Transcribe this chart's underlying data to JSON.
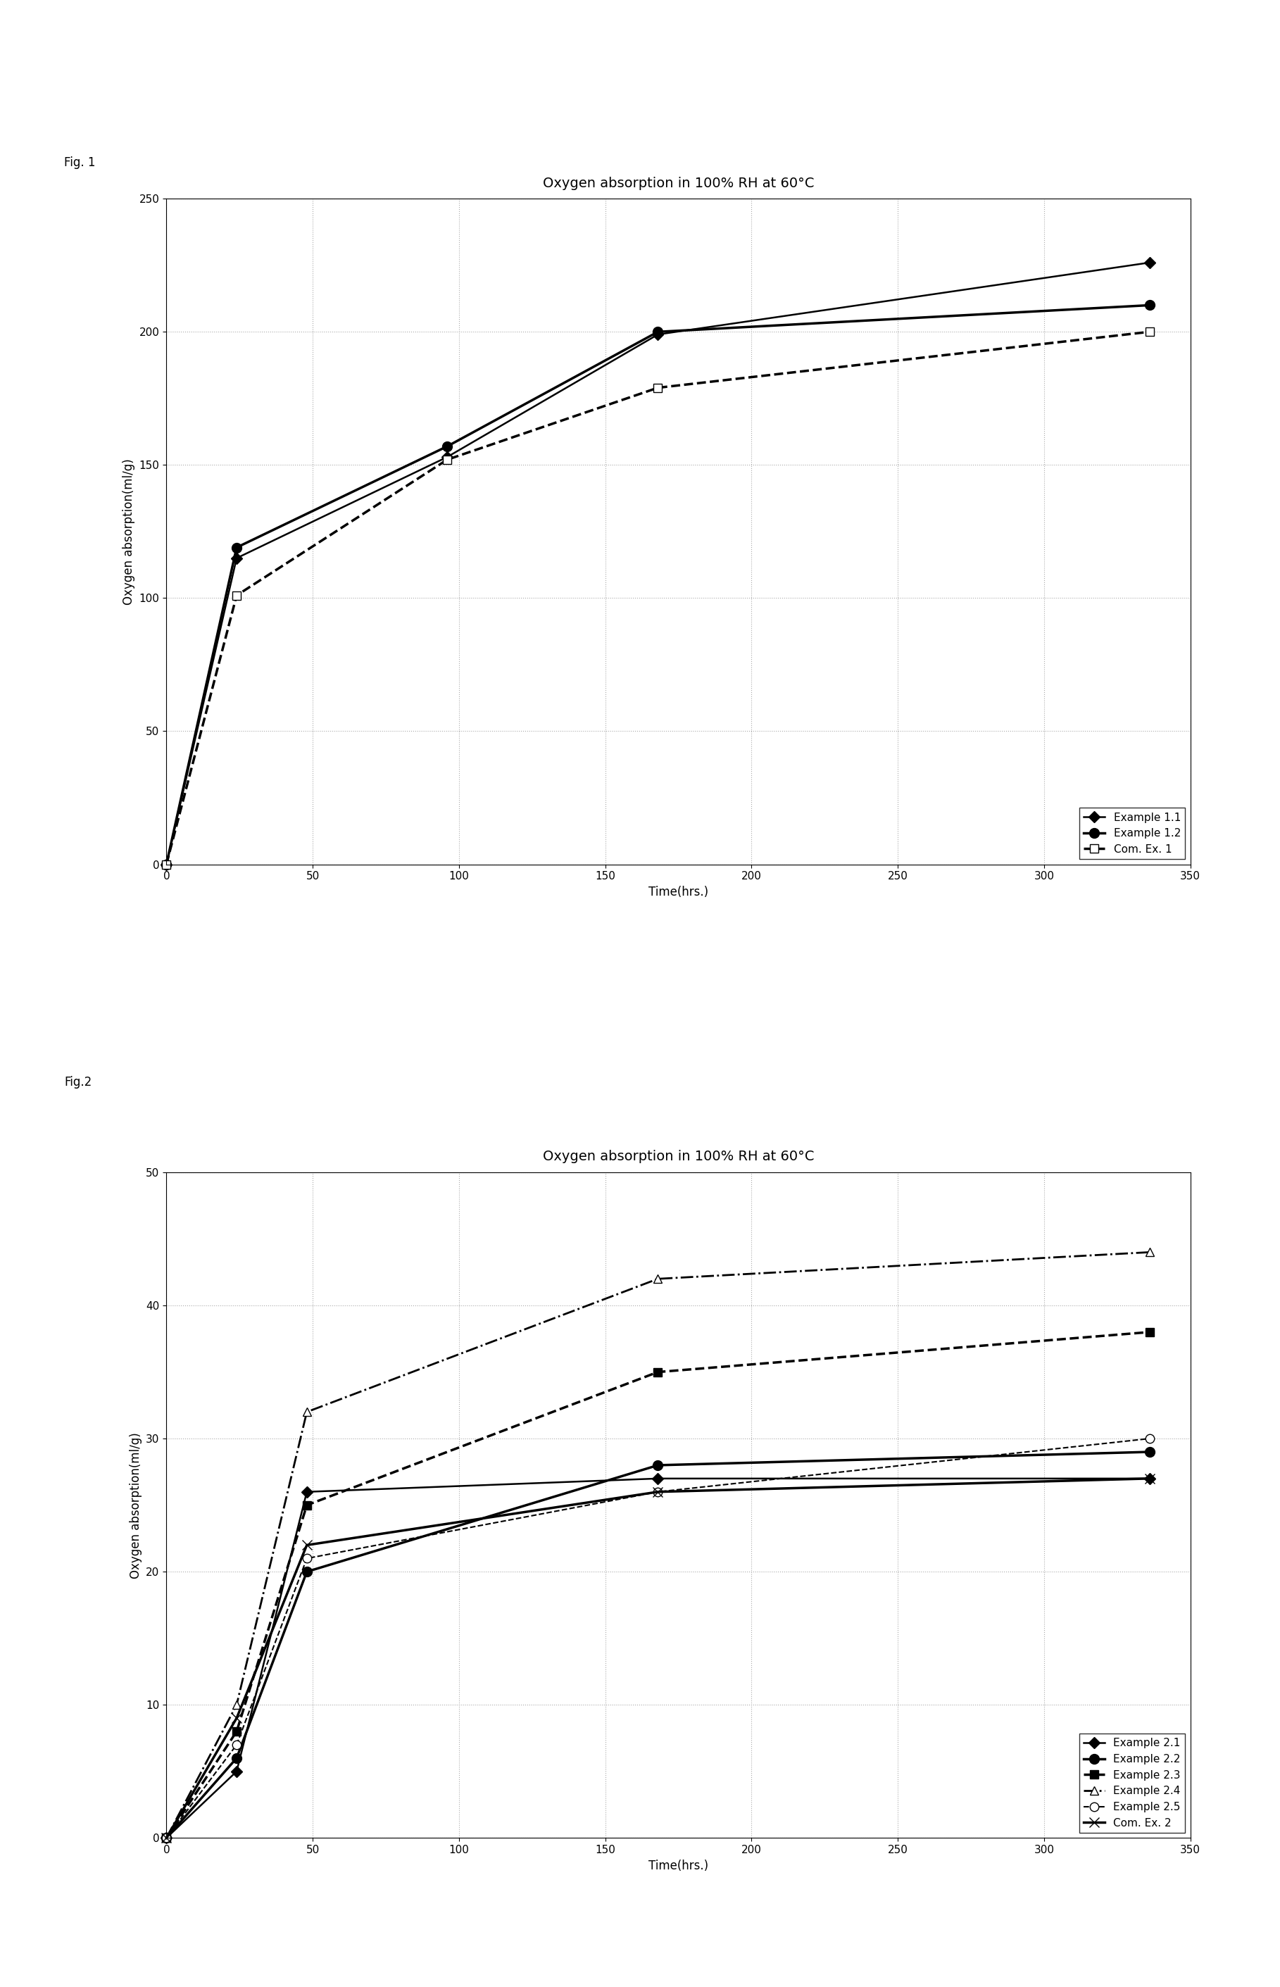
{
  "fig1": {
    "title": "Oxygen absorption in 100% RH at 60°C",
    "xlabel": "Time(hrs.)",
    "ylabel": "Oxygen absorption(ml/g)",
    "ylim": [
      0,
      250
    ],
    "yticks": [
      0,
      50,
      100,
      150,
      200,
      250
    ],
    "xlim": [
      0,
      350
    ],
    "xticks": [
      0,
      50,
      100,
      150,
      200,
      250,
      300,
      350
    ],
    "series": [
      {
        "label": "Example 1.1",
        "x": [
          0,
          24,
          96,
          168,
          336
        ],
        "y": [
          0,
          115,
          153,
          199,
          226
        ],
        "color": "#000000",
        "linestyle": "-",
        "marker": "D",
        "marker_filled": true,
        "linewidth": 1.8,
        "markersize": 8
      },
      {
        "label": "Example 1.2",
        "x": [
          0,
          24,
          96,
          168,
          336
        ],
        "y": [
          0,
          119,
          157,
          200,
          210
        ],
        "color": "#000000",
        "linestyle": "-",
        "marker": "o",
        "marker_filled": true,
        "linewidth": 2.5,
        "markersize": 10
      },
      {
        "label": "Com. Ex. 1",
        "x": [
          0,
          24,
          96,
          168,
          336
        ],
        "y": [
          0,
          101,
          152,
          179,
          200
        ],
        "color": "#000000",
        "linestyle": "--",
        "marker": "s",
        "marker_filled": false,
        "linewidth": 2.5,
        "markersize": 9
      }
    ]
  },
  "fig2": {
    "title": "Oxygen absorption in 100% RH at 60°C",
    "xlabel": "Time(hrs.)",
    "ylabel": "Oxygen absorption(ml/g)",
    "ylim": [
      0,
      50
    ],
    "yticks": [
      0,
      10,
      20,
      30,
      40,
      50
    ],
    "xlim": [
      0,
      350
    ],
    "xticks": [
      0,
      50,
      100,
      150,
      200,
      250,
      300,
      350
    ],
    "series": [
      {
        "label": "Example 2.1",
        "x": [
          0,
          24,
          48,
          168,
          336
        ],
        "y": [
          0,
          5,
          26,
          27,
          27
        ],
        "color": "#000000",
        "linestyle": "-",
        "marker": "D",
        "marker_filled": true,
        "linewidth": 1.8,
        "markersize": 8
      },
      {
        "label": "Example 2.2",
        "x": [
          0,
          24,
          48,
          168,
          336
        ],
        "y": [
          0,
          6,
          20,
          28,
          29
        ],
        "color": "#000000",
        "linestyle": "-",
        "marker": "o",
        "marker_filled": true,
        "linewidth": 2.5,
        "markersize": 10
      },
      {
        "label": "Example 2.3",
        "x": [
          0,
          24,
          48,
          168,
          336
        ],
        "y": [
          0,
          8,
          25,
          35,
          38
        ],
        "color": "#000000",
        "linestyle": "--",
        "marker": "s",
        "marker_filled": true,
        "linewidth": 2.5,
        "markersize": 9
      },
      {
        "label": "Example 2.4",
        "x": [
          0,
          24,
          48,
          168,
          336
        ],
        "y": [
          0,
          10,
          32,
          42,
          44
        ],
        "color": "#000000",
        "linestyle": "-.",
        "marker": "^",
        "marker_filled": false,
        "linewidth": 2.0,
        "markersize": 9
      },
      {
        "label": "Example 2.5",
        "x": [
          0,
          24,
          48,
          168,
          336
        ],
        "y": [
          0,
          7,
          21,
          26,
          30
        ],
        "color": "#000000",
        "linestyle": "--",
        "marker": "o",
        "marker_filled": false,
        "linewidth": 1.5,
        "markersize": 9
      },
      {
        "label": "Com. Ex. 2",
        "x": [
          0,
          24,
          48,
          168,
          336
        ],
        "y": [
          0,
          9,
          22,
          26,
          27
        ],
        "color": "#000000",
        "linestyle": "-",
        "marker": "x",
        "marker_filled": true,
        "linewidth": 2.5,
        "markersize": 10
      }
    ]
  },
  "fig1_label": "Fig. 1",
  "fig2_label": "Fig.2",
  "background_color": "#ffffff",
  "title_fontsize": 14,
  "label_fontsize": 12,
  "tick_fontsize": 11,
  "legend_fontsize": 11,
  "figlabel_fontsize": 12
}
